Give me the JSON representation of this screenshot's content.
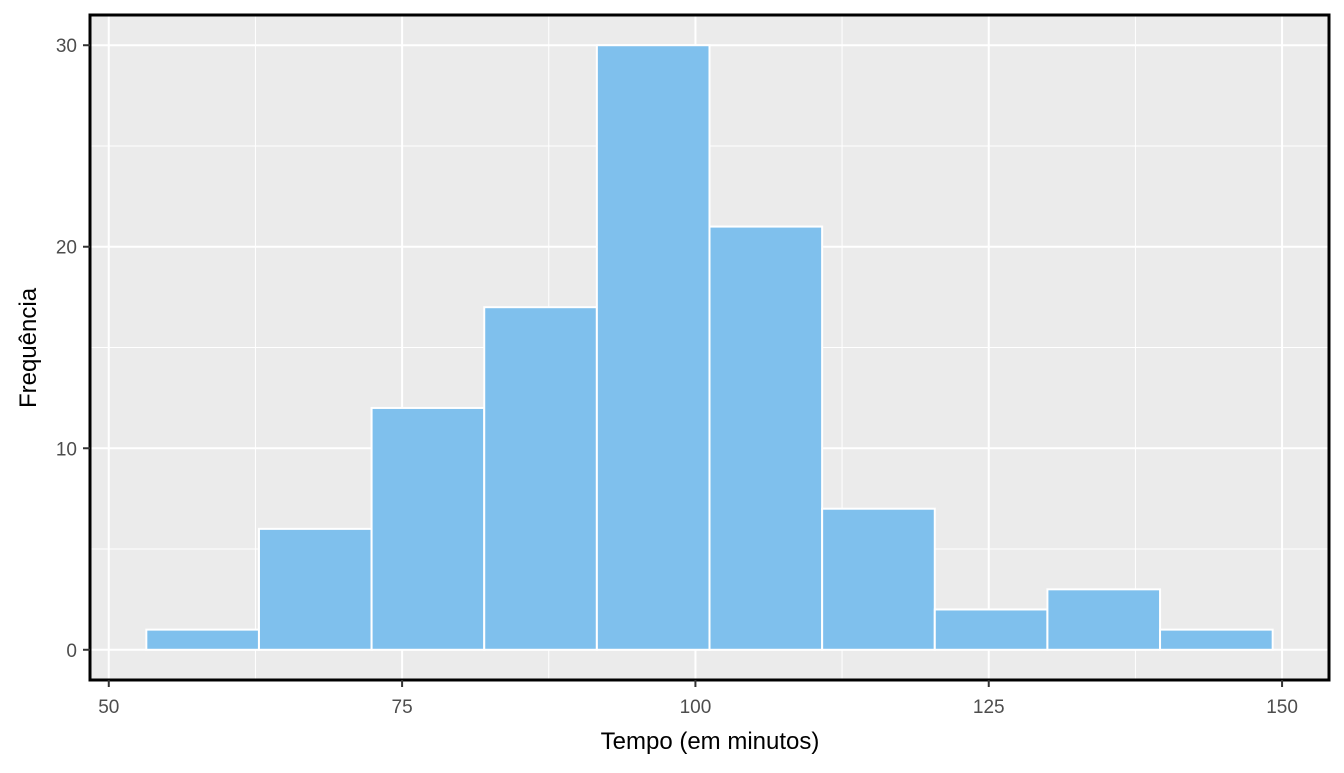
{
  "chart_data": {
    "type": "bar",
    "title": "",
    "xlabel": "Tempo (em minutos)",
    "ylabel": "Frequência",
    "bins": [
      {
        "x0": 53.2,
        "x1": 62.8,
        "count": 1
      },
      {
        "x0": 62.8,
        "x1": 72.4,
        "count": 6
      },
      {
        "x0": 72.4,
        "x1": 82.0,
        "count": 12
      },
      {
        "x0": 82.0,
        "x1": 91.6,
        "count": 17
      },
      {
        "x0": 91.6,
        "x1": 101.2,
        "count": 30
      },
      {
        "x0": 101.2,
        "x1": 110.8,
        "count": 21
      },
      {
        "x0": 110.8,
        "x1": 120.4,
        "count": 7
      },
      {
        "x0": 120.4,
        "x1": 130.0,
        "count": 2
      },
      {
        "x0": 130.0,
        "x1": 139.6,
        "count": 3
      },
      {
        "x0": 139.6,
        "x1": 149.2,
        "count": 1
      }
    ],
    "xlim": [
      48.4,
      154.0
    ],
    "ylim": [
      -1.5,
      31.5
    ],
    "xticks": [
      50,
      75,
      100,
      125,
      150
    ],
    "xtick_labels": [
      "50",
      "75",
      "100",
      "125",
      "150"
    ],
    "yticks": [
      0,
      10,
      20,
      30
    ],
    "ytick_labels": [
      "0",
      "10",
      "20",
      "30"
    ],
    "grid": true,
    "colors": {
      "bar_fill": "#7fc0ed",
      "bar_stroke": "#ffffff",
      "panel_background": "#ebebeb",
      "grid": "#ffffff",
      "border": "#000000"
    }
  }
}
